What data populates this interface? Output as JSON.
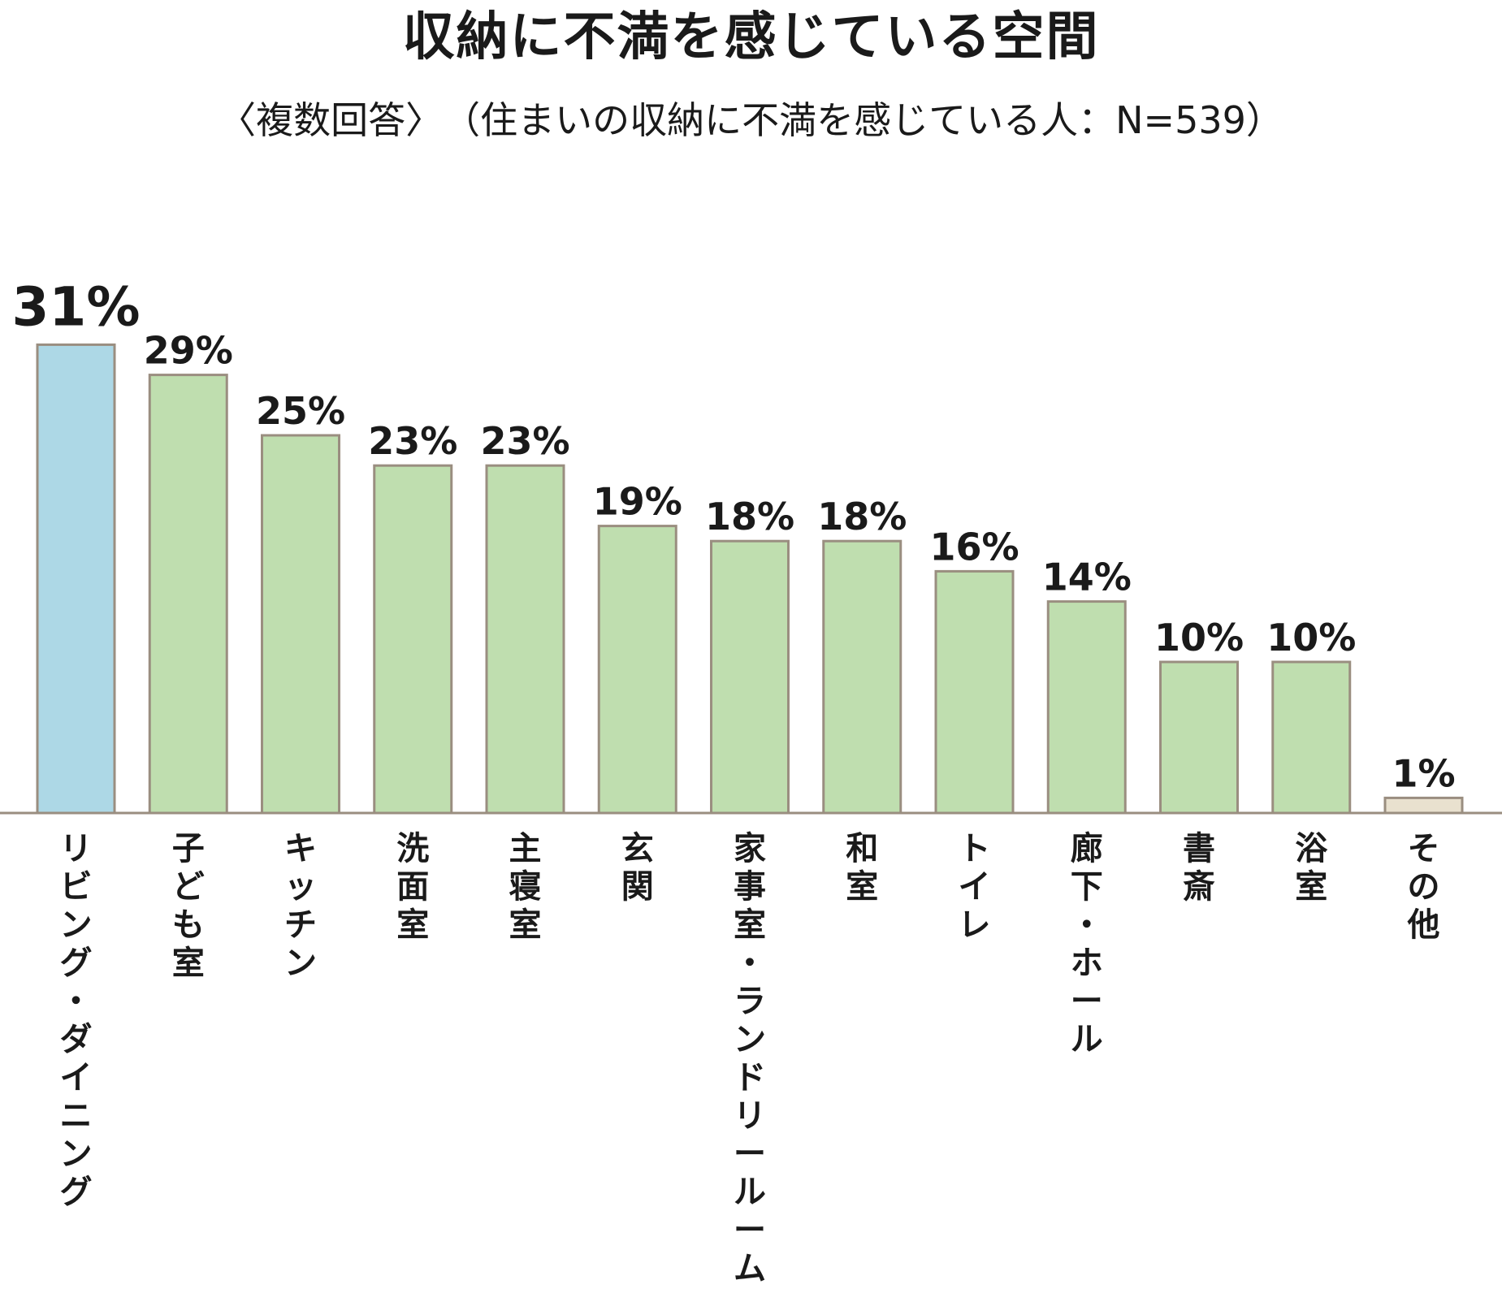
{
  "chart_data": {
    "type": "bar",
    "title": "収納に不満を感じている空間",
    "subtitle": "〈複数回答〉　（住まいの収納に不満を感じている人：N=539）",
    "categories": [
      "リビング・ダイニング",
      "子ども室",
      "キッチン",
      "洗面室",
      "主寝室",
      "玄関",
      "家事室・ランドリールーム",
      "和室",
      "トイレ",
      "廊下・ホール",
      "書斎",
      "浴室",
      "その他"
    ],
    "values": [
      31,
      29,
      25,
      23,
      23,
      19,
      18,
      18,
      16,
      14,
      10,
      10,
      1
    ],
    "value_labels": [
      "31%",
      "29%",
      "25%",
      "23%",
      "23%",
      "19%",
      "18%",
      "18%",
      "16%",
      "14%",
      "10%",
      "10%",
      "1%"
    ],
    "unit": "%",
    "ylim": [
      0,
      31
    ],
    "grid": false,
    "legend": "none",
    "colors": {
      "highlight": "#add8e6",
      "default": "#bfdeaf",
      "other": "#e9e1cf",
      "bar_border": "#9a8e80",
      "baseline": "#9a8e80"
    }
  }
}
